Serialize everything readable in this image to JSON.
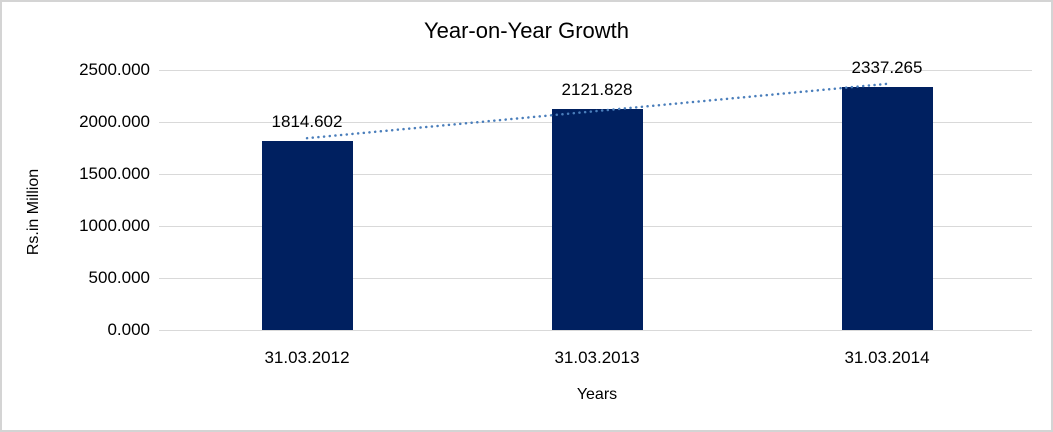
{
  "chart_data": {
    "type": "bar",
    "title": "Year-on-Year Growth",
    "categories": [
      "31.03.2012",
      "31.03.2013",
      "31.03.2014"
    ],
    "values": [
      1814.602,
      2121.828,
      2337.265
    ],
    "data_labels": [
      "1814.602",
      "2121.828",
      "2337.265"
    ],
    "xlabel": "Years",
    "ylabel": "Rs.in Million",
    "ylim": [
      0,
      2500
    ],
    "ytick_step": 500,
    "ytick_labels": [
      "0.000",
      "500.000",
      "1000.000",
      "1500.000",
      "2000.000",
      "2500.000"
    ],
    "grid": true,
    "legend": "none",
    "trendline": {
      "type": "linear",
      "style": "dotted",
      "color": "#4a7ebb"
    },
    "colors": {
      "bar": "#002060",
      "gridline": "#d9d9d9",
      "frame_border": "#d4d4d4",
      "text": "#000000",
      "background": "#ffffff"
    }
  }
}
